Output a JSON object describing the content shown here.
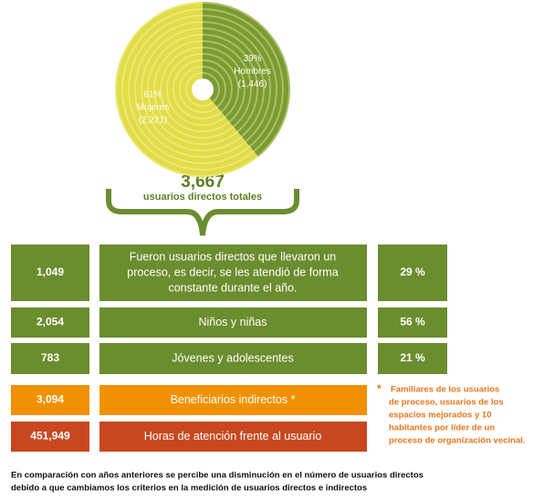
{
  "chart_data": {
    "type": "pie",
    "categories": [
      "Mujeres",
      "Hombres"
    ],
    "values": [
      61,
      39
    ],
    "value_labels": [
      "61%",
      "39%"
    ],
    "count_labels": [
      "(2,221)",
      "(1,446)"
    ],
    "colors": [
      "#e2dc46",
      "#7b9b2f"
    ]
  },
  "total": {
    "value": "3,667",
    "label": "usuarios directos totales"
  },
  "rows": [
    {
      "count": "1,049",
      "lines": [
        "Fueron usuarios directos que llevaron un",
        "proceso, es decir, se les atendió de forma",
        "constante durante el año."
      ],
      "share": "29 %",
      "color": "#6a8d2e"
    },
    {
      "count": "2,054",
      "lines": [
        "Niños y niñas"
      ],
      "share": "56 %",
      "color": "#6a8d2e"
    },
    {
      "count": "783",
      "lines": [
        "Jóvenes y adolescentes"
      ],
      "share": "21 %",
      "color": "#6a8d2e"
    },
    {
      "count": "3,094",
      "lines": [
        "Beneficiarios indirectos *"
      ],
      "color": "#f29100"
    },
    {
      "count": "451,949",
      "lines": [
        "Horas de atención frente al usuario"
      ],
      "color": "#c9471f"
    }
  ],
  "footnote": {
    "marker": "*",
    "lines": [
      "Familiares de los usuarios",
      "de proceso, usuarios de los",
      "espacios mejorados y 10",
      "habitantes por líder de un",
      "proceso de organización vecinal."
    ]
  },
  "note": {
    "lines": [
      "En comparación con años anteriores se percibe una disminución en el número de usuarios directos",
      "debido a que cambiamos los criterios en la medición de usuarios directos e indirectos"
    ]
  }
}
